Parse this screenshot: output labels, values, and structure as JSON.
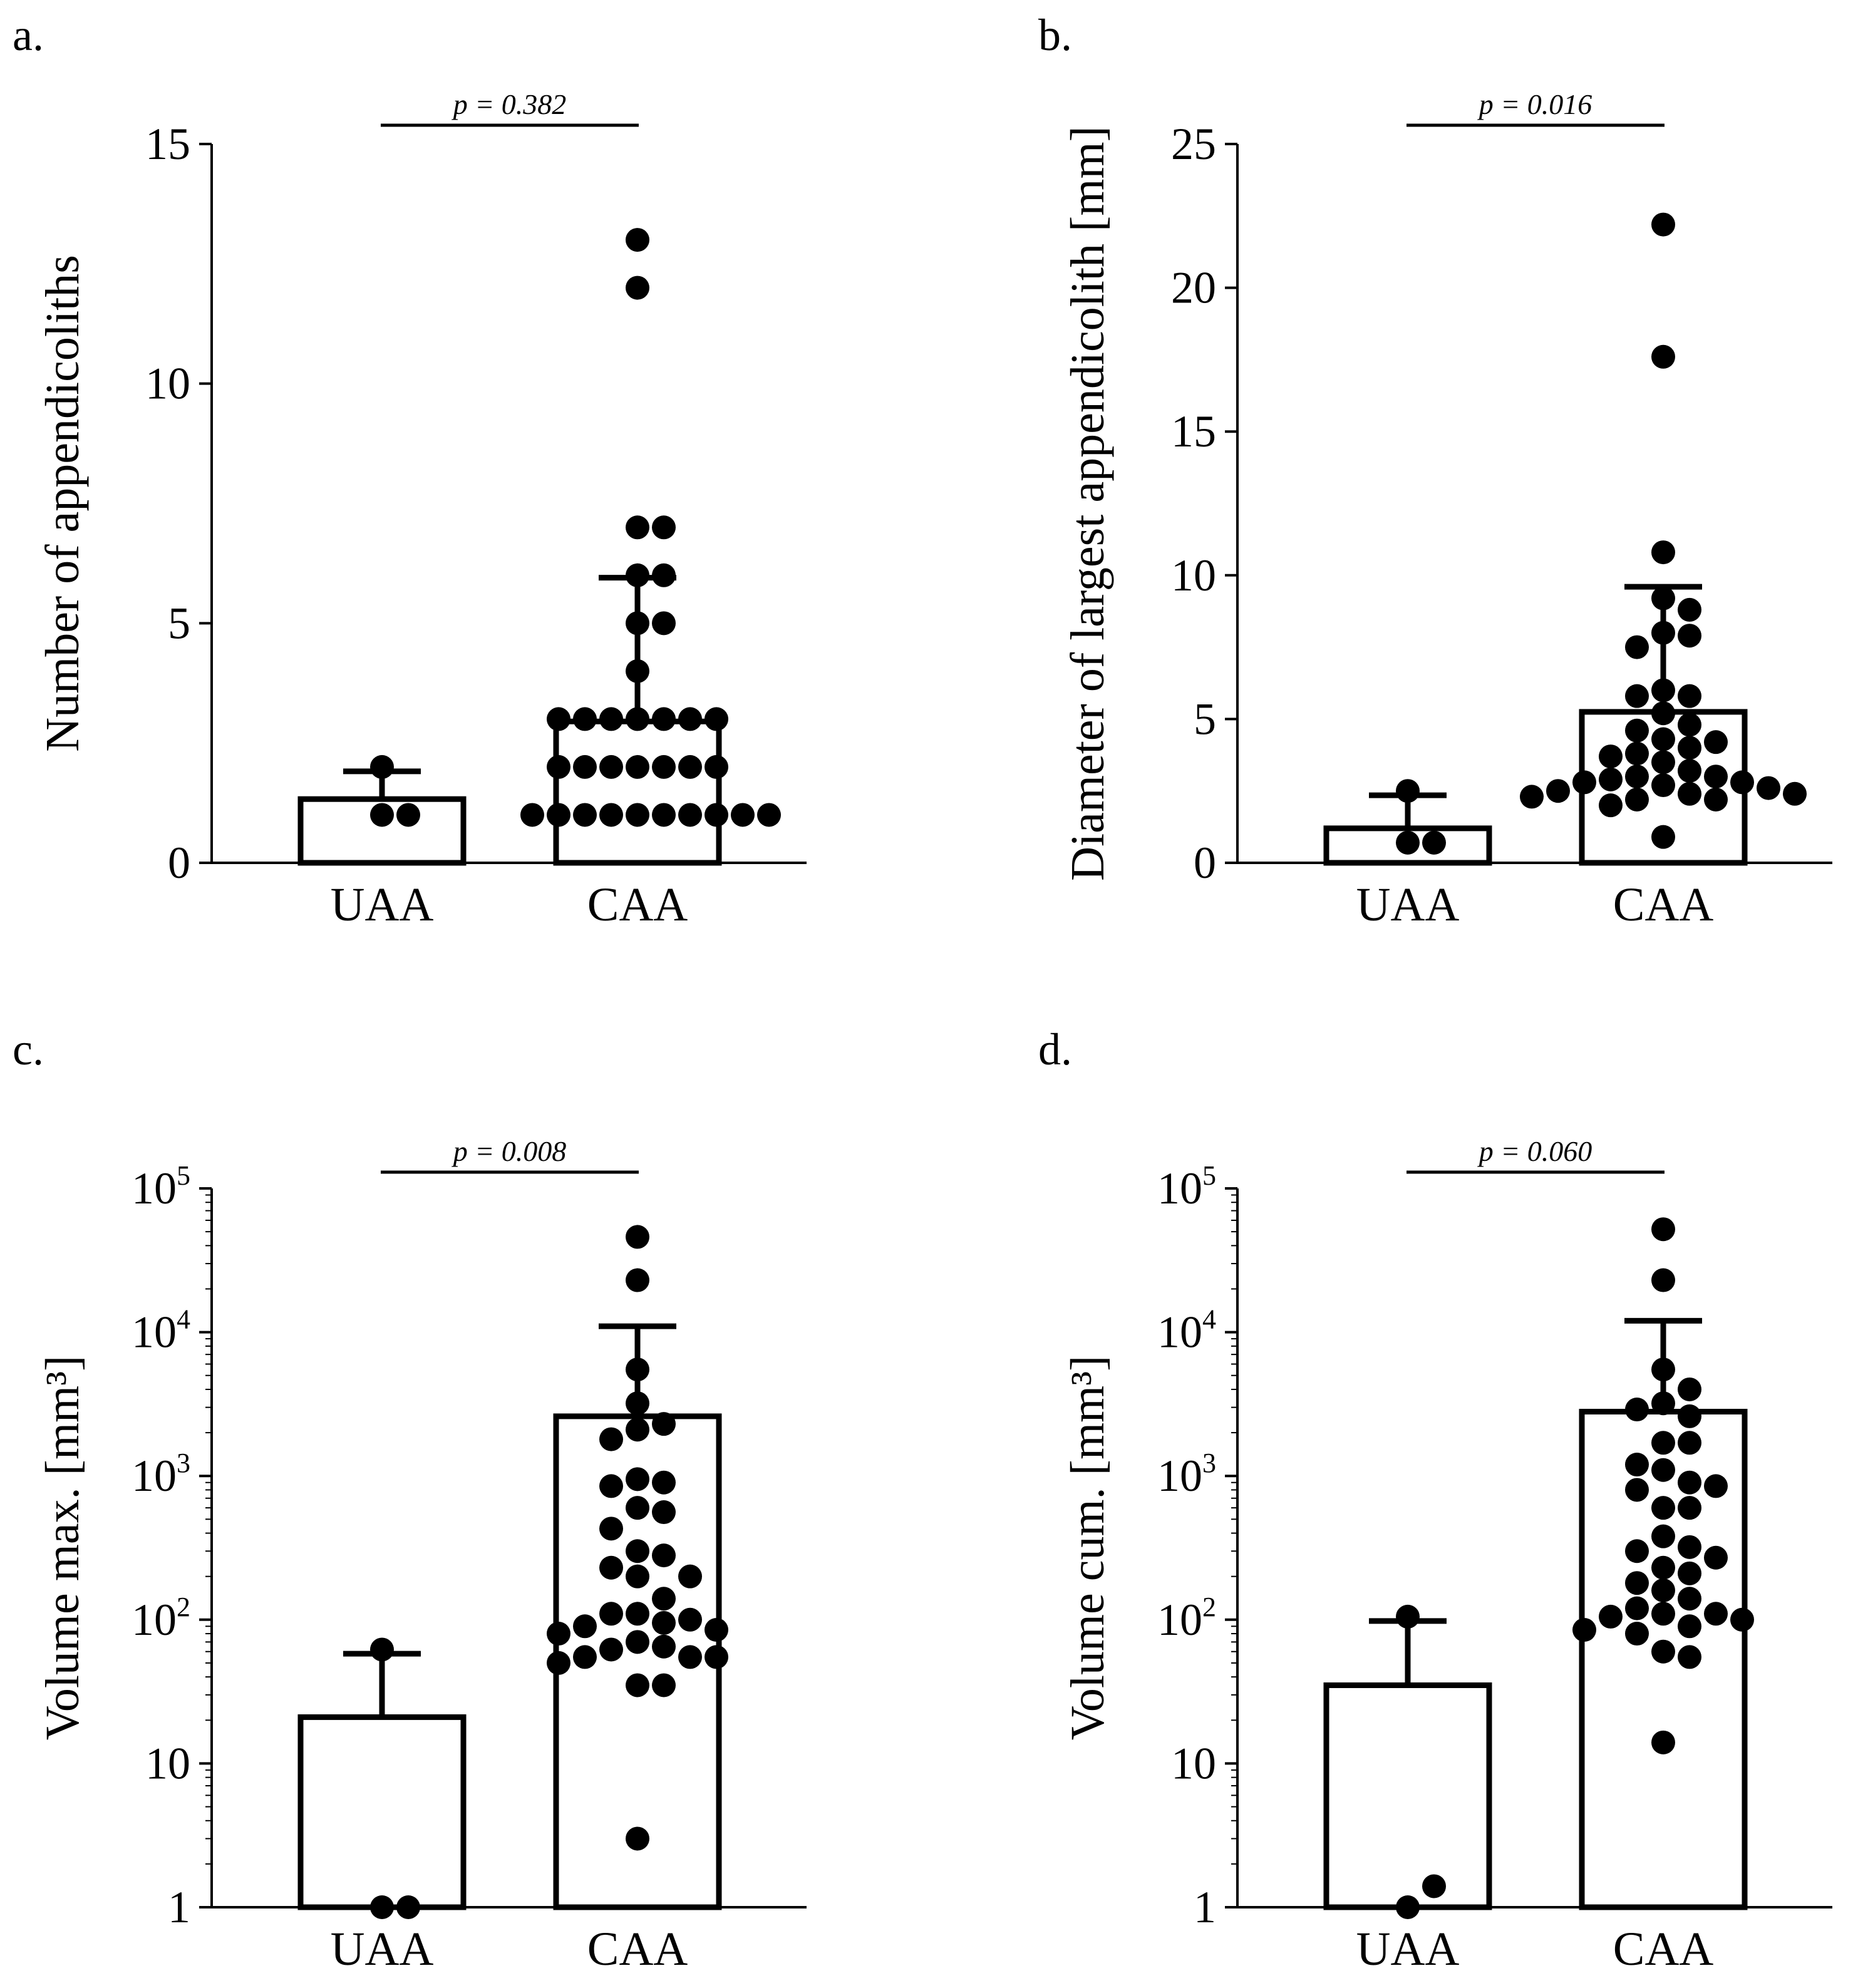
{
  "chart_data": [
    {
      "panel_label": "a.",
      "type": "bar",
      "title": "",
      "xlabel": "",
      "ylabel": "Number of appendicoliths",
      "yscale": "linear",
      "ylim": [
        0,
        15
      ],
      "yticks": [
        0,
        5,
        10,
        15
      ],
      "ytick_labels": [
        {
          "base": "0",
          "sup": ""
        },
        {
          "base": "5",
          "sup": ""
        },
        {
          "base": "10",
          "sup": ""
        },
        {
          "base": "15",
          "sup": ""
        }
      ],
      "categories": [
        "UAA",
        "CAA"
      ],
      "bars": [
        {
          "category": "UAA",
          "value": 1.33,
          "error_upper": 1.91
        },
        {
          "category": "CAA",
          "value": 2.95,
          "error_upper": 5.95
        }
      ],
      "points": {
        "UAA": [
          1,
          1,
          2
        ],
        "CAA": [
          13,
          12,
          7,
          7,
          6,
          6,
          5,
          5,
          4,
          3,
          3,
          3,
          3,
          3,
          3,
          3,
          2,
          2,
          2,
          2,
          2,
          2,
          2,
          1,
          1,
          1,
          1,
          1,
          1,
          1,
          1,
          1,
          1
        ]
      },
      "comparison": {
        "label": "p = 0.382",
        "between": [
          "UAA",
          "CAA"
        ]
      }
    },
    {
      "panel_label": "b.",
      "type": "bar",
      "title": "",
      "xlabel": "",
      "ylabel": "Diameter of largest appendicolith [mm]",
      "yscale": "linear",
      "ylim": [
        0,
        25
      ],
      "yticks": [
        0,
        5,
        10,
        15,
        20,
        25
      ],
      "ytick_labels": [
        {
          "base": "0",
          "sup": ""
        },
        {
          "base": "5",
          "sup": ""
        },
        {
          "base": "10",
          "sup": ""
        },
        {
          "base": "15",
          "sup": ""
        },
        {
          "base": "20",
          "sup": ""
        },
        {
          "base": "25",
          "sup": ""
        }
      ],
      "categories": [
        "UAA",
        "CAA"
      ],
      "bars": [
        {
          "category": "UAA",
          "value": 1.2,
          "error_upper": 2.35
        },
        {
          "category": "CAA",
          "value": 5.25,
          "error_upper": 9.6
        }
      ],
      "points": {
        "UAA": [
          0.7,
          0.7,
          2.5
        ],
        "CAA": [
          22.2,
          17.6,
          10.8,
          9.2,
          8.8,
          8.0,
          7.9,
          7.5,
          6.0,
          5.8,
          5.8,
          5.2,
          4.8,
          4.6,
          4.3,
          4.2,
          4.0,
          3.8,
          3.7,
          3.5,
          3.2,
          3.0,
          3.0,
          2.9,
          2.8,
          2.8,
          2.7,
          2.6,
          2.5,
          2.4,
          2.4,
          2.3,
          2.2,
          2.2,
          2.0,
          0.9
        ]
      },
      "comparison": {
        "label": "p = 0.016",
        "between": [
          "UAA",
          "CAA"
        ]
      }
    },
    {
      "panel_label": "c.",
      "type": "bar",
      "title": "",
      "xlabel": "",
      "ylabel": "Volume max. [mm³]",
      "yscale": "log",
      "ylim": [
        1,
        100000
      ],
      "yticks": [
        1,
        10,
        100,
        1000,
        10000,
        100000
      ],
      "ytick_labels": [
        {
          "base": "1",
          "sup": ""
        },
        {
          "base": "10",
          "sup": ""
        },
        {
          "base": "10",
          "sup": "2"
        },
        {
          "base": "10",
          "sup": "3"
        },
        {
          "base": "10",
          "sup": "4"
        },
        {
          "base": "10",
          "sup": "5"
        }
      ],
      "categories": [
        "UAA",
        "CAA"
      ],
      "bars": [
        {
          "category": "UAA",
          "value": 21,
          "error_upper": 58
        },
        {
          "category": "CAA",
          "value": 2600,
          "error_upper": 11000
        }
      ],
      "points": {
        "UAA": [
          1,
          1,
          62
        ],
        "CAA": [
          46000,
          23000,
          5500,
          3200,
          2300,
          2100,
          1800,
          950,
          900,
          850,
          600,
          560,
          430,
          300,
          280,
          230,
          200,
          200,
          140,
          110,
          110,
          100,
          95,
          90,
          85,
          80,
          70,
          65,
          62,
          55,
          55,
          55,
          50,
          35,
          35,
          3
        ]
      },
      "comparison": {
        "label": "p = 0.008",
        "between": [
          "UAA",
          "CAA"
        ]
      }
    },
    {
      "panel_label": "d.",
      "type": "bar",
      "title": "",
      "xlabel": "",
      "ylabel": "Volume cum. [mm³]",
      "yscale": "log",
      "ylim": [
        1,
        100000
      ],
      "yticks": [
        1,
        10,
        100,
        1000,
        10000,
        100000
      ],
      "ytick_labels": [
        {
          "base": "1",
          "sup": ""
        },
        {
          "base": "10",
          "sup": ""
        },
        {
          "base": "10",
          "sup": "2"
        },
        {
          "base": "10",
          "sup": "3"
        },
        {
          "base": "10",
          "sup": "4"
        },
        {
          "base": "10",
          "sup": "5"
        }
      ],
      "categories": [
        "UAA",
        "CAA"
      ],
      "bars": [
        {
          "category": "UAA",
          "value": 35,
          "error_upper": 98
        },
        {
          "category": "CAA",
          "value": 2800,
          "error_upper": 12000
        }
      ],
      "points": {
        "UAA": [
          1,
          1.4,
          105
        ],
        "CAA": [
          52000,
          23000,
          5500,
          4000,
          3200,
          2900,
          2600,
          1700,
          1700,
          1200,
          1100,
          900,
          850,
          800,
          600,
          600,
          380,
          320,
          300,
          270,
          230,
          210,
          180,
          160,
          140,
          120,
          110,
          110,
          105,
          100,
          90,
          85,
          80,
          60,
          55,
          14
        ]
      },
      "comparison": {
        "label": "p = 0.060",
        "between": [
          "UAA",
          "CAA"
        ]
      }
    }
  ]
}
